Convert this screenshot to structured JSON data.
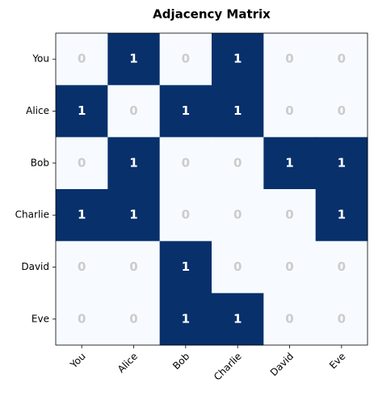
{
  "chart_data": {
    "type": "heatmap",
    "title": "Adjacency Matrix",
    "x_categories": [
      "You",
      "Alice",
      "Bob",
      "Charlie",
      "David",
      "Eve"
    ],
    "y_categories": [
      "You",
      "Alice",
      "Bob",
      "Charlie",
      "David",
      "Eve"
    ],
    "values": [
      [
        0,
        1,
        0,
        1,
        0,
        0
      ],
      [
        1,
        0,
        1,
        1,
        0,
        0
      ],
      [
        0,
        1,
        0,
        0,
        1,
        1
      ],
      [
        1,
        1,
        0,
        0,
        0,
        1
      ],
      [
        0,
        0,
        1,
        0,
        0,
        0
      ],
      [
        0,
        0,
        1,
        1,
        0,
        0
      ]
    ],
    "colors": [
      "#f7fbff",
      "#08306b"
    ],
    "label_colors": [
      "#cccccc",
      "#ffffff"
    ]
  }
}
